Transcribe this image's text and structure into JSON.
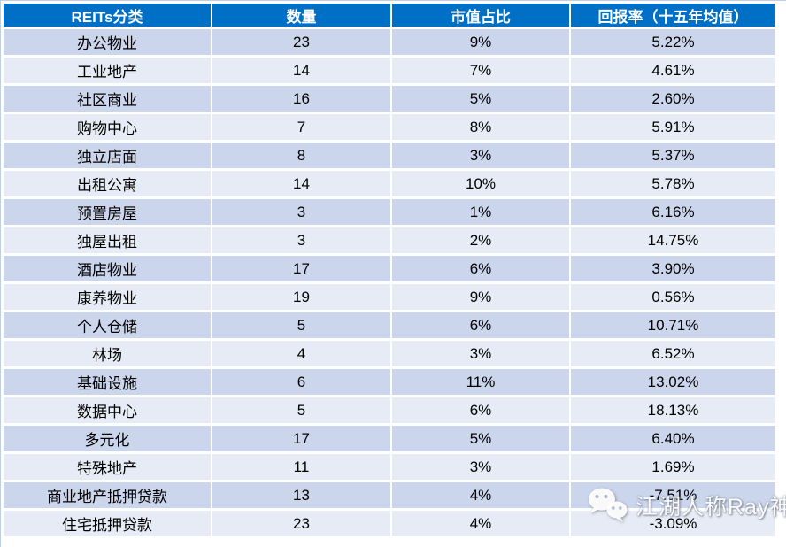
{
  "colors": {
    "header_bg": "#0070C6",
    "header_text": "#FFFFFF",
    "row_odd": "#CBD5EC",
    "row_even": "#E7EBF5",
    "gap": "#FFFFFF"
  },
  "chart_data": {
    "type": "table",
    "columns": [
      "REITs分类",
      "数量",
      "市值占比",
      "回报率（十五年均值）"
    ],
    "rows": [
      [
        "办公物业",
        "23",
        "9%",
        "5.22%"
      ],
      [
        "工业地产",
        "14",
        "7%",
        "4.61%"
      ],
      [
        "社区商业",
        "16",
        "5%",
        "2.60%"
      ],
      [
        "购物中心",
        "7",
        "8%",
        "5.91%"
      ],
      [
        "独立店面",
        "8",
        "3%",
        "5.37%"
      ],
      [
        "出租公寓",
        "14",
        "10%",
        "5.78%"
      ],
      [
        "预置房屋",
        "3",
        "1%",
        "6.16%"
      ],
      [
        "独屋出租",
        "3",
        "2%",
        "14.75%"
      ],
      [
        "酒店物业",
        "17",
        "6%",
        "3.90%"
      ],
      [
        "康养物业",
        "19",
        "9%",
        "0.56%"
      ],
      [
        "个人仓储",
        "5",
        "6%",
        "10.71%"
      ],
      [
        "林场",
        "4",
        "3%",
        "6.52%"
      ],
      [
        "基础设施",
        "6",
        "11%",
        "13.02%"
      ],
      [
        "数据中心",
        "5",
        "6%",
        "18.13%"
      ],
      [
        "多元化",
        "17",
        "5%",
        "6.40%"
      ],
      [
        "特殊地产",
        "11",
        "3%",
        "1.69%"
      ],
      [
        "商业地产抵押贷款",
        "13",
        "4%",
        "-7.51%"
      ],
      [
        "住宅抵押贷款",
        "23",
        "4%",
        "-3.09%"
      ]
    ]
  },
  "watermark": {
    "text": "江湖人称Ray神",
    "icon": "wechat-icon"
  }
}
